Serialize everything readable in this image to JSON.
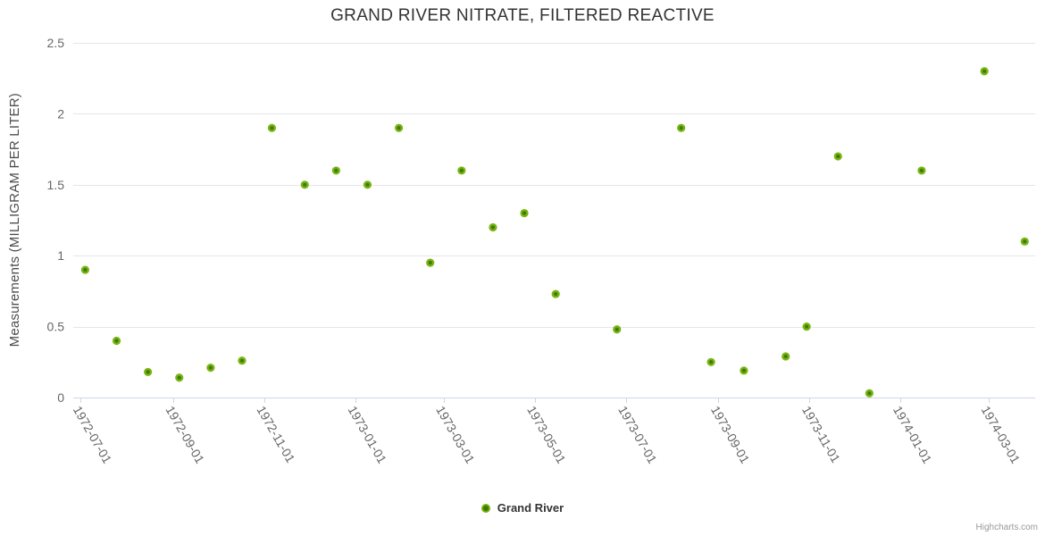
{
  "chart": {
    "title": "GRAND RIVER NITRATE, FILTERED REACTIVE",
    "credits": "Highcharts.com"
  },
  "legend": {
    "items": [
      {
        "label": "Grand River"
      }
    ]
  },
  "colors": {
    "marker_outer": "#79b513",
    "marker_inner": "#3f7a03",
    "grid_line": "#e6e6e6",
    "axis_line": "#ccd6eb",
    "tick_label": "#666666",
    "title_text": "#333333",
    "axis_title_text": "#4d4d4d",
    "credits_text": "#999999"
  },
  "chart_data": {
    "type": "scatter",
    "title": "GRAND RIVER NITRATE, FILTERED REACTIVE",
    "xlabel": "",
    "ylabel": "Measurements (MILLIGRAM PER LITER)",
    "ylim": [
      0,
      2.5
    ],
    "y_ticks": [
      0,
      0.5,
      1,
      1.5,
      2,
      2.5
    ],
    "x_ticks": [
      "1972-07-01",
      "1972-09-01",
      "1972-11-01",
      "1973-01-01",
      "1973-03-01",
      "1973-05-01",
      "1973-07-01",
      "1973-09-01",
      "1973-11-01",
      "1974-01-01",
      "1974-03-01"
    ],
    "x_range": [
      "1972-06-26",
      "1974-04-01"
    ],
    "grid": "horizontal-only",
    "legend_position": "bottom-center",
    "series": [
      {
        "name": "Grand River",
        "points": [
          [
            "1972-07-04",
            0.9
          ],
          [
            "1972-07-25",
            0.4
          ],
          [
            "1972-08-15",
            0.18
          ],
          [
            "1972-09-05",
            0.14
          ],
          [
            "1972-09-26",
            0.21
          ],
          [
            "1972-10-17",
            0.26
          ],
          [
            "1972-11-06",
            1.9
          ],
          [
            "1972-11-28",
            1.5
          ],
          [
            "1972-12-19",
            1.6
          ],
          [
            "1973-01-09",
            1.5
          ],
          [
            "1973-01-30",
            1.9
          ],
          [
            "1973-02-20",
            0.95
          ],
          [
            "1973-03-13",
            1.6
          ],
          [
            "1973-04-03",
            1.2
          ],
          [
            "1973-04-24",
            1.3
          ],
          [
            "1973-05-15",
            0.73
          ],
          [
            "1973-06-25",
            0.48
          ],
          [
            "1973-08-07",
            1.9
          ],
          [
            "1973-08-27",
            0.25
          ],
          [
            "1973-09-18",
            0.19
          ],
          [
            "1973-10-16",
            0.29
          ],
          [
            "1973-10-30",
            0.5
          ],
          [
            "1973-11-20",
            1.7
          ],
          [
            "1973-12-11",
            0.03
          ],
          [
            "1974-01-15",
            1.6
          ],
          [
            "1974-02-26",
            2.3
          ],
          [
            "1974-03-25",
            1.1
          ]
        ]
      }
    ]
  }
}
